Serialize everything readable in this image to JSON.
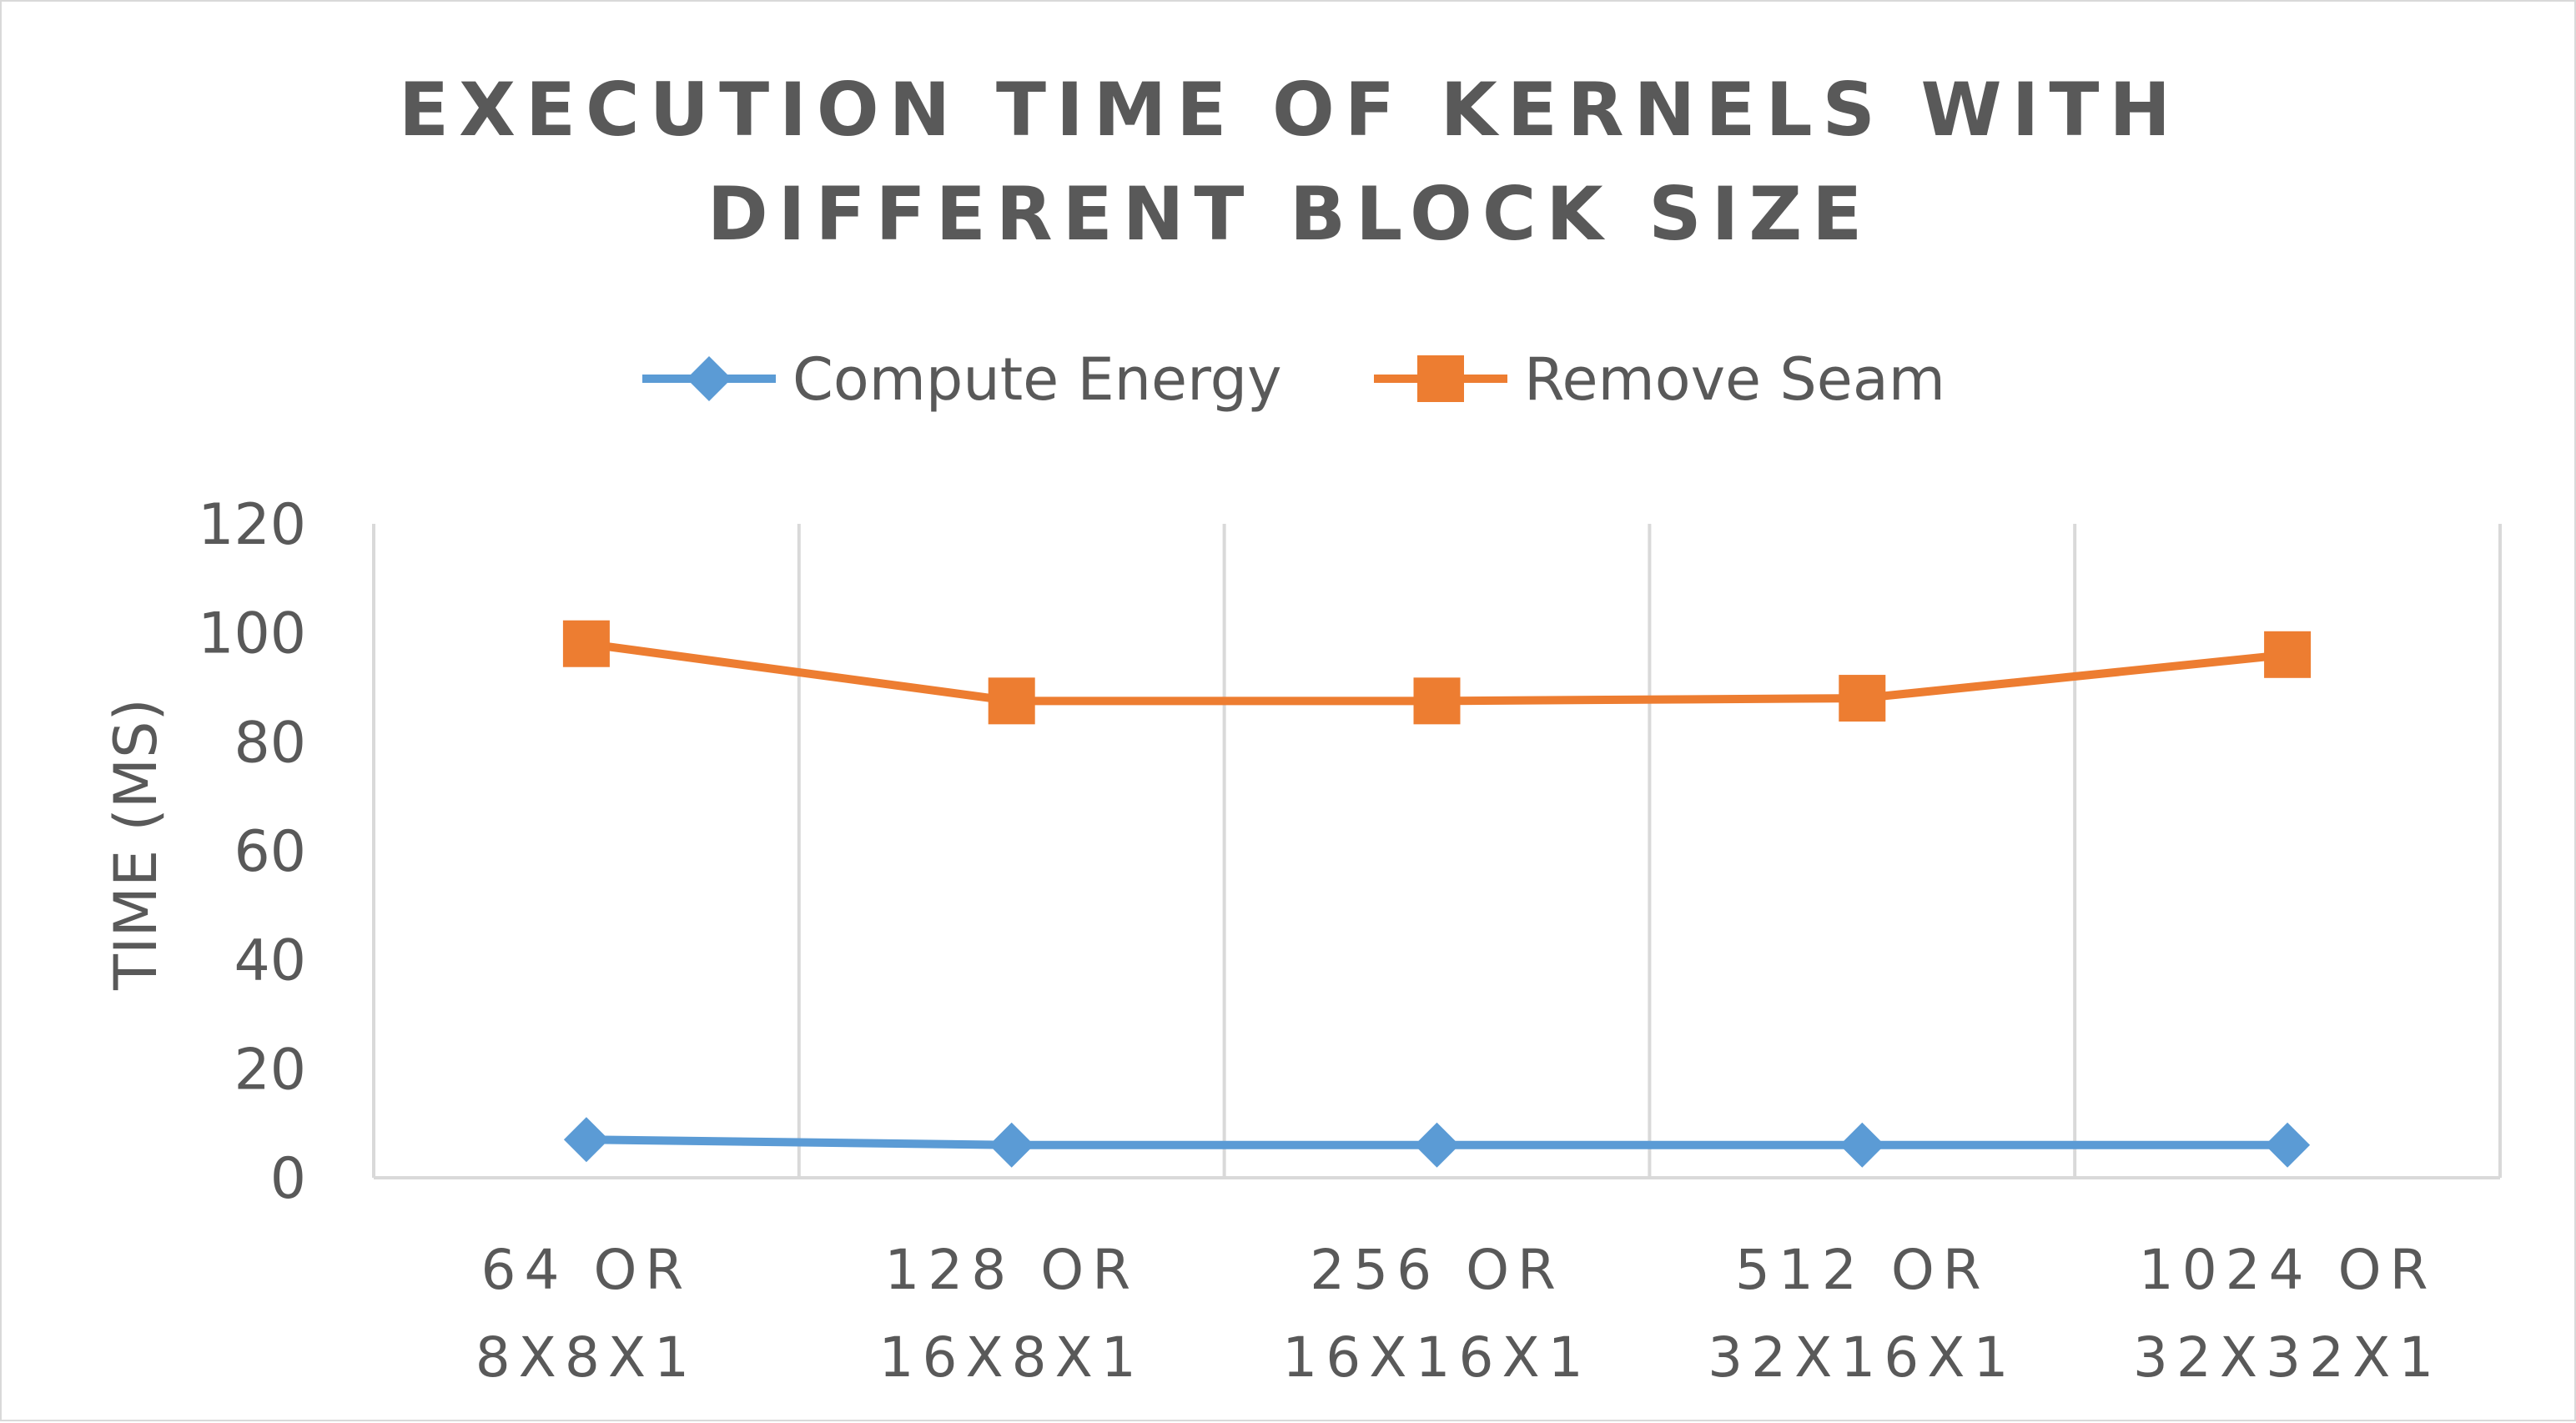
{
  "chart_data": {
    "type": "line",
    "title_lines": [
      "EXECUTION TIME OF KERNELS WITH",
      "DIFFERENT BLOCK SIZE"
    ],
    "ylabel": "TIME (MS)",
    "xlabel": "",
    "ylim": [
      0,
      120
    ],
    "yticks": [
      "0",
      "20",
      "40",
      "60",
      "80",
      "100",
      "120"
    ],
    "categories": [
      [
        "64 OR",
        "8X8X1"
      ],
      [
        "128 OR",
        "16X8X1"
      ],
      [
        "256 OR",
        "16X16X1"
      ],
      [
        "512 OR",
        "32X16X1"
      ],
      [
        "1024 OR",
        "32X32X1"
      ]
    ],
    "series": [
      {
        "name": "Compute Energy",
        "color": "#5b9bd5",
        "marker": "diamond",
        "values": [
          7,
          6,
          6,
          6,
          6
        ]
      },
      {
        "name": "Remove Seam",
        "color": "#ed7d31",
        "marker": "square",
        "values": [
          98,
          87.5,
          87.5,
          88,
          96
        ]
      }
    ],
    "grid": "vertical",
    "legend_position": "top"
  }
}
